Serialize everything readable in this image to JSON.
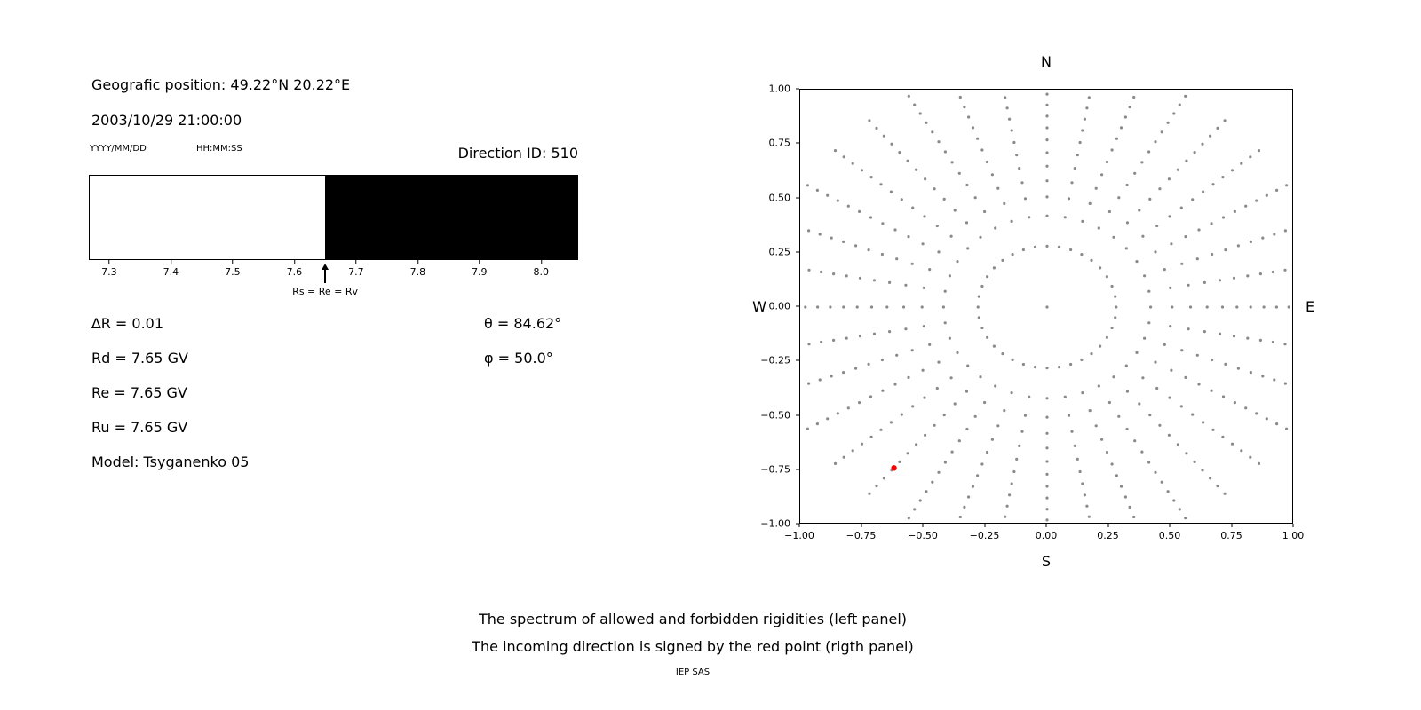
{
  "header": {
    "geographic_position": "Geografic position: 49.22°N 20.22°E",
    "datetime": "2003/10/29 21:00:00",
    "date_format_hint": "YYYY/MM/DD",
    "time_format_hint": "HH:MM:SS",
    "direction_id": "Direction ID: 510"
  },
  "parameters": {
    "delta_r": "∆R = 0.01",
    "rd": "Rd = 7.65 GV",
    "re": "Re = 7.65 GV",
    "ru": "Ru = 7.65 GV",
    "model": "Model: Tsyganenko 05",
    "theta": "θ = 84.62°",
    "phi": "φ = 50.0°"
  },
  "footer": {
    "caption_line1": "The spectrum of allowed and forbidden rigidities (left panel)",
    "caption_line2": "The incoming direction is signed by the red point (rigth panel)",
    "credit": "IEP SAS"
  },
  "chart_data": [
    {
      "type": "area",
      "panel": "left",
      "title": "Spectrum of allowed (white) and forbidden (black) rigidities",
      "xlim": [
        7.267,
        8.06
      ],
      "x_ticks": [
        {
          "v": 7.3,
          "label": "7.3"
        },
        {
          "v": 7.4,
          "label": "7.4"
        },
        {
          "v": 7.5,
          "label": "7.5"
        },
        {
          "v": 7.6,
          "label": "7.6"
        },
        {
          "v": 7.7,
          "label": "7.7"
        },
        {
          "v": 7.8,
          "label": "7.8"
        },
        {
          "v": 7.9,
          "label": "7.9"
        },
        {
          "v": 8.0,
          "label": "8.0"
        }
      ],
      "regions": [
        {
          "name": "allowed",
          "from": 7.267,
          "to": 7.65,
          "color": "#ffffff"
        },
        {
          "name": "forbidden",
          "from": 7.65,
          "to": 8.06,
          "color": "#000000"
        }
      ],
      "annotation": {
        "text": "Rs = Re = Rv",
        "x": 7.65
      }
    },
    {
      "type": "scatter",
      "panel": "right",
      "compass": {
        "top": "N",
        "bottom": "S",
        "left": "W",
        "right": "E"
      },
      "xlim": [
        -1,
        1
      ],
      "ylim": [
        -1,
        1
      ],
      "x_ticks": [
        {
          "v": -1.0,
          "label": "−1.00"
        },
        {
          "v": -0.75,
          "label": "−0.75"
        },
        {
          "v": -0.5,
          "label": "−0.50"
        },
        {
          "v": -0.25,
          "label": "−0.25"
        },
        {
          "v": 0.0,
          "label": "0.00"
        },
        {
          "v": 0.25,
          "label": "0.25"
        },
        {
          "v": 0.5,
          "label": "0.50"
        },
        {
          "v": 0.75,
          "label": "0.75"
        },
        {
          "v": 1.0,
          "label": "1.00"
        }
      ],
      "y_ticks": [
        {
          "v": 1.0,
          "label": "1.00"
        },
        {
          "v": 0.75,
          "label": "0.75"
        },
        {
          "v": 0.5,
          "label": "0.50"
        },
        {
          "v": 0.25,
          "label": "0.25"
        },
        {
          "v": 0.0,
          "label": "0.00"
        },
        {
          "v": -0.25,
          "label": "−0.25"
        },
        {
          "v": -0.5,
          "label": "−0.50"
        },
        {
          "v": -0.75,
          "label": "−0.75"
        },
        {
          "v": -1.0,
          "label": "−1.00"
        }
      ],
      "dot_color": "#8a8a8a",
      "red_color": "#ff0000",
      "rays": {
        "azimuth_start_deg": 0,
        "azimuth_step_deg": 10,
        "azimuth_count": 36,
        "r_start": 0.28,
        "r_end": 1.12,
        "points_per_ray": 14,
        "spacing_exponent": 0.7
      },
      "center_dot": {
        "x": 0,
        "y": 0
      },
      "red_point": {
        "x": -0.62,
        "y": -0.74
      }
    }
  ]
}
